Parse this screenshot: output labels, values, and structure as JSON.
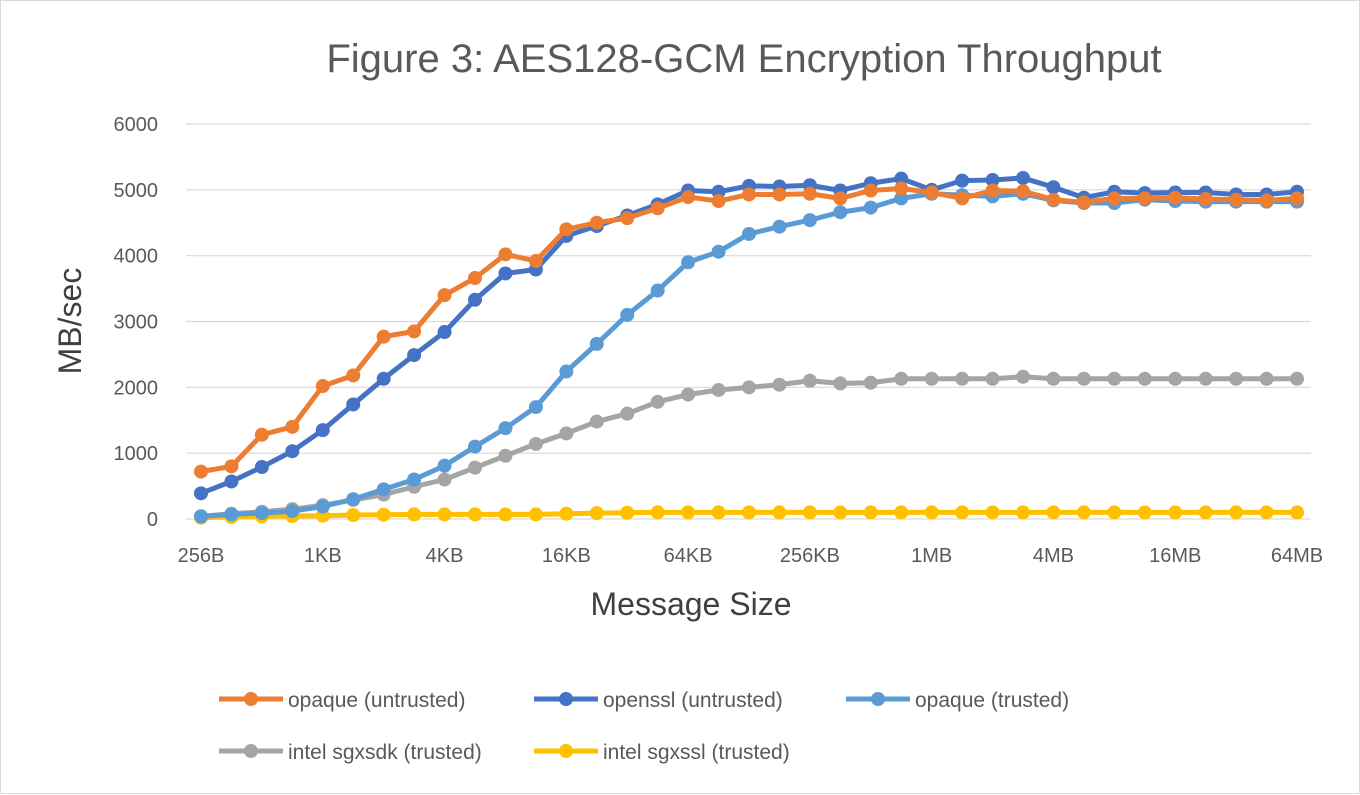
{
  "chart_data": {
    "type": "line",
    "title": "Figure 3: AES128-GCM Encryption Throughput",
    "xlabel": "Message Size",
    "ylabel": "MB/sec",
    "ylim": [
      0,
      6000
    ],
    "yticks": [
      0,
      1000,
      2000,
      3000,
      4000,
      5000,
      6000
    ],
    "x_tick_labels": [
      "256B",
      "1KB",
      "4KB",
      "16KB",
      "64KB",
      "256KB",
      "1MB",
      "4MB",
      "16MB",
      "64MB"
    ],
    "x": [
      "256B",
      "362B",
      "512B",
      "724B",
      "1KB",
      "1.4KB",
      "2KB",
      "2.8KB",
      "4KB",
      "5.7KB",
      "8KB",
      "11KB",
      "16KB",
      "23KB",
      "32KB",
      "45KB",
      "64KB",
      "91KB",
      "128KB",
      "181KB",
      "256KB",
      "362KB",
      "512KB",
      "724KB",
      "1MB",
      "1.4MB",
      "2MB",
      "2.8MB",
      "4MB",
      "5.7MB",
      "8MB",
      "11MB",
      "16MB",
      "23MB",
      "32MB",
      "45MB",
      "64MB"
    ],
    "grid": true,
    "legend_position": "bottom",
    "series": [
      {
        "name": "opaque (untrusted)",
        "color": "#ED7D31",
        "values": [
          720,
          800,
          1280,
          1400,
          2020,
          2180,
          2770,
          2850,
          3400,
          3660,
          4020,
          3920,
          4400,
          4500,
          4570,
          4720,
          4890,
          4830,
          4930,
          4930,
          4940,
          4870,
          4990,
          5020,
          4960,
          4870,
          4990,
          4980,
          4850,
          4810,
          4870,
          4870,
          4880,
          4860,
          4850,
          4840,
          4870
        ]
      },
      {
        "name": "openssl (untrusted)",
        "color": "#4472C4",
        "values": [
          390,
          570,
          790,
          1030,
          1350,
          1740,
          2130,
          2490,
          2840,
          3330,
          3730,
          3790,
          4300,
          4450,
          4610,
          4780,
          4990,
          4970,
          5060,
          5050,
          5070,
          4990,
          5100,
          5170,
          5000,
          5140,
          5150,
          5180,
          5040,
          4880,
          4970,
          4950,
          4960,
          4960,
          4930,
          4930,
          4970
        ]
      },
      {
        "name": "opaque (trusted)",
        "color": "#5B9BD5",
        "values": [
          40,
          70,
          90,
          120,
          190,
          300,
          450,
          600,
          810,
          1100,
          1380,
          1700,
          2240,
          2660,
          3100,
          3470,
          3900,
          4060,
          4330,
          4440,
          4540,
          4660,
          4730,
          4870,
          4940,
          4920,
          4900,
          4940,
          4840,
          4800,
          4800,
          4850,
          4830,
          4820,
          4820,
          4820,
          4820
        ]
      },
      {
        "name": "intel sgxsdk (trusted)",
        "color": "#A5A5A5",
        "values": [
          40,
          80,
          110,
          150,
          210,
          290,
          370,
          490,
          600,
          780,
          960,
          1140,
          1300,
          1480,
          1600,
          1780,
          1890,
          1960,
          2000,
          2040,
          2100,
          2060,
          2070,
          2130,
          2130,
          2130,
          2130,
          2160,
          2130,
          2130,
          2130,
          2130,
          2130,
          2130,
          2130,
          2130,
          2130
        ]
      },
      {
        "name": "intel sgxssl (trusted)",
        "color": "#FFC000",
        "values": [
          20,
          30,
          40,
          45,
          50,
          60,
          65,
          70,
          70,
          70,
          70,
          70,
          80,
          90,
          95,
          100,
          100,
          100,
          100,
          100,
          100,
          100,
          100,
          100,
          100,
          100,
          100,
          100,
          100,
          100,
          100,
          100,
          100,
          100,
          100,
          100,
          100
        ]
      }
    ]
  }
}
